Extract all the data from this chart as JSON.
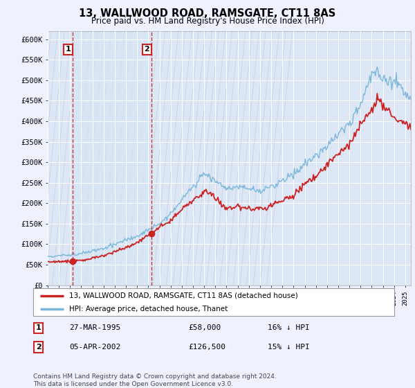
{
  "title": "13, WALLWOOD ROAD, RAMSGATE, CT11 8AS",
  "subtitle": "Price paid vs. HM Land Registry's House Price Index (HPI)",
  "hpi_color": "#7ab8d9",
  "price_color": "#cc2222",
  "marker1_price": 58000,
  "marker2_price": 126500,
  "marker1_date": "27-MAR-1995",
  "marker2_date": "05-APR-2002",
  "marker1_pct": "16% ↓ HPI",
  "marker2_pct": "15% ↓ HPI",
  "legend_line1": "13, WALLWOOD ROAD, RAMSGATE, CT11 8AS (detached house)",
  "legend_line2": "HPI: Average price, detached house, Thanet",
  "footnote": "Contains HM Land Registry data © Crown copyright and database right 2024.\nThis data is licensed under the Open Government Licence v3.0.",
  "ylim": [
    0,
    620000
  ],
  "yticks": [
    0,
    50000,
    100000,
    150000,
    200000,
    250000,
    300000,
    350000,
    400000,
    450000,
    500000,
    550000,
    600000
  ],
  "ytick_labels": [
    "£0",
    "£50K",
    "£100K",
    "£150K",
    "£200K",
    "£250K",
    "£300K",
    "£350K",
    "£400K",
    "£450K",
    "£500K",
    "£550K",
    "£600K"
  ],
  "background_color": "#eef2ff",
  "plot_bg": "#dde6f5",
  "hatch_bg": "#d0d8ec",
  "blue_shade": "#d5e5f5",
  "grid_color": "#ffffff",
  "m1_x": 1995.22,
  "m2_x": 2002.27,
  "xmin": 1993,
  "xmax": 2025.5
}
